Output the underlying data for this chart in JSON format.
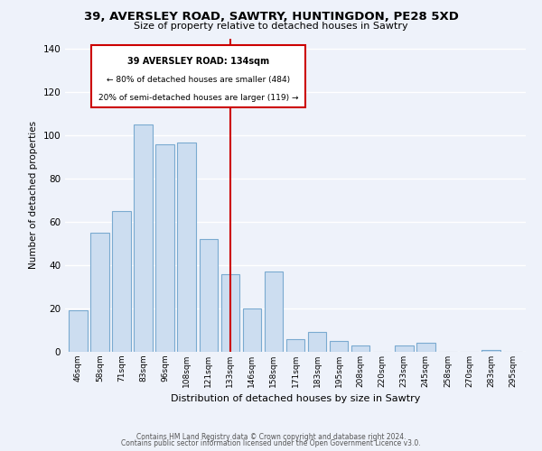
{
  "title": "39, AVERSLEY ROAD, SAWTRY, HUNTINGDON, PE28 5XD",
  "subtitle": "Size of property relative to detached houses in Sawtry",
  "xlabel": "Distribution of detached houses by size in Sawtry",
  "ylabel": "Number of detached properties",
  "bar_labels": [
    "46sqm",
    "58sqm",
    "71sqm",
    "83sqm",
    "96sqm",
    "108sqm",
    "121sqm",
    "133sqm",
    "146sqm",
    "158sqm",
    "171sqm",
    "183sqm",
    "195sqm",
    "208sqm",
    "220sqm",
    "233sqm",
    "245sqm",
    "258sqm",
    "270sqm",
    "283sqm",
    "295sqm"
  ],
  "bar_values": [
    19,
    55,
    65,
    105,
    96,
    97,
    52,
    36,
    20,
    37,
    6,
    9,
    5,
    3,
    0,
    3,
    4,
    0,
    0,
    1,
    0
  ],
  "bar_color": "#ccddf0",
  "bar_edge_color": "#7aaad0",
  "highlight_index": 7,
  "highlight_line_color": "#cc0000",
  "annotation_box_edge_color": "#cc0000",
  "annotation_text_line1": "39 AVERSLEY ROAD: 134sqm",
  "annotation_text_line2": "← 80% of detached houses are smaller (484)",
  "annotation_text_line3": "20% of semi-detached houses are larger (119) →",
  "ylim": [
    0,
    145
  ],
  "yticks": [
    0,
    20,
    40,
    60,
    80,
    100,
    120,
    140
  ],
  "footer_line1": "Contains HM Land Registry data © Crown copyright and database right 2024.",
  "footer_line2": "Contains public sector information licensed under the Open Government Licence v3.0.",
  "bg_color": "#eef2fa",
  "plot_bg_color": "#eef2fa",
  "grid_color": "#ffffff"
}
